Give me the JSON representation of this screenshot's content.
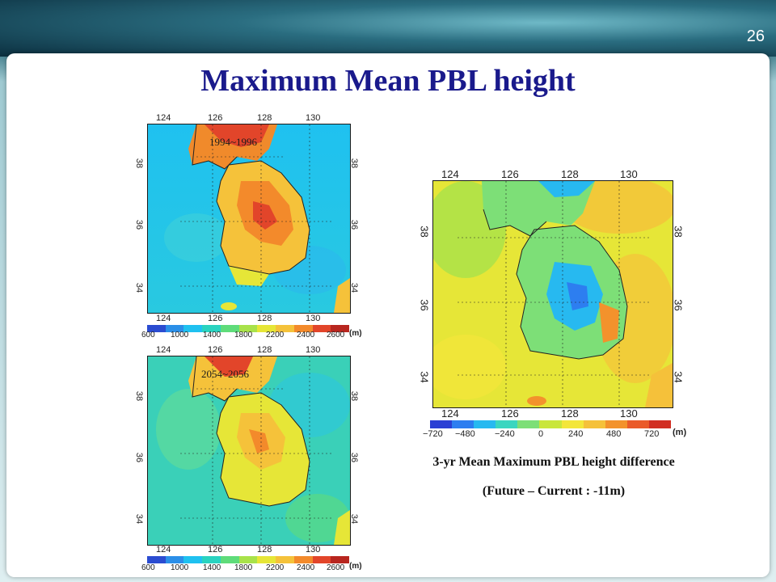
{
  "slide": {
    "number": "26",
    "title": "Maximum Mean PBL height"
  },
  "map_top": {
    "period": "1994~1996",
    "lon_ticks": [
      "124",
      "126",
      "128",
      "130"
    ],
    "lat_ticks": [
      "34",
      "36",
      "38"
    ],
    "colorbar": {
      "labels": [
        "600",
        "1000",
        "1400",
        "1800",
        "2200",
        "2400",
        "2600"
      ],
      "unit": "(m)"
    }
  },
  "map_bottom": {
    "period": "2054~2056",
    "lon_ticks": [
      "124",
      "126",
      "128",
      "130"
    ],
    "lat_ticks": [
      "34",
      "36",
      "38"
    ],
    "colorbar": {
      "labels": [
        "600",
        "1000",
        "1400",
        "1800",
        "2200",
        "2400",
        "2600"
      ],
      "unit": "(m)"
    }
  },
  "map_diff": {
    "lon_ticks": [
      "124",
      "126",
      "128",
      "130"
    ],
    "lat_ticks": [
      "34",
      "36",
      "38"
    ],
    "colorbar": {
      "labels": [
        "−720",
        "−480",
        "−240",
        "0",
        "240",
        "480",
        "720"
      ],
      "unit": "(m)"
    }
  },
  "caption": {
    "line1": "3-yr Mean Maximum PBL height difference",
    "line2": "(Future – Current : -11m)"
  },
  "colors": {
    "title": "#1a1a8c",
    "abs_scale": [
      "#2b4cd1",
      "#2b8fe8",
      "#1fc1f0",
      "#29d3c0",
      "#5fdc7a",
      "#a8e24a",
      "#e6e637",
      "#f5c23a",
      "#f38a2b",
      "#e2452a",
      "#b8261f"
    ],
    "diff_scale": [
      "#2b3fd4",
      "#2d7ef0",
      "#27b9f0",
      "#3ad6c0",
      "#7ddf77",
      "#c9e63b",
      "#f3e63a",
      "#f5c13a",
      "#f3922c",
      "#ea5a29",
      "#d12e22"
    ]
  }
}
